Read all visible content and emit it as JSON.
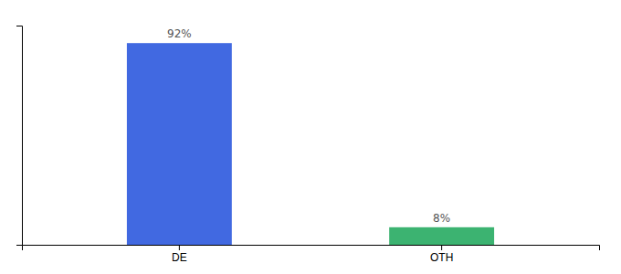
{
  "chart_data": {
    "type": "bar",
    "categories": [
      "DE",
      "OTH"
    ],
    "values": [
      92,
      8
    ],
    "value_labels": [
      "92%",
      "8%"
    ],
    "colors": [
      "#4169E1",
      "#3CB371"
    ],
    "ylim": [
      0,
      100
    ],
    "data_labels": true,
    "tick_labels": "x"
  }
}
